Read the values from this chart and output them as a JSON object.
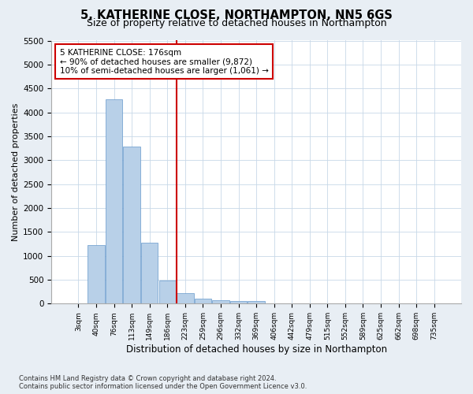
{
  "title": "5, KATHERINE CLOSE, NORTHAMPTON, NN5 6GS",
  "subtitle": "Size of property relative to detached houses in Northampton",
  "xlabel": "Distribution of detached houses by size in Northampton",
  "ylabel": "Number of detached properties",
  "categories": [
    "3sqm",
    "40sqm",
    "76sqm",
    "113sqm",
    "149sqm",
    "186sqm",
    "223sqm",
    "259sqm",
    "296sqm",
    "332sqm",
    "369sqm",
    "406sqm",
    "442sqm",
    "479sqm",
    "515sqm",
    "552sqm",
    "589sqm",
    "625sqm",
    "662sqm",
    "698sqm",
    "735sqm"
  ],
  "values": [
    0,
    1230,
    4280,
    3280,
    1280,
    480,
    215,
    110,
    70,
    55,
    50,
    0,
    0,
    0,
    0,
    0,
    0,
    0,
    0,
    0,
    0
  ],
  "bar_color": "#b8d0e8",
  "bar_edge_color": "#6699cc",
  "vline_index": 5,
  "vline_color": "#cc0000",
  "annotation_text": "5 KATHERINE CLOSE: 176sqm\n← 90% of detached houses are smaller (9,872)\n10% of semi-detached houses are larger (1,061) →",
  "annotation_box_color": "#ffffff",
  "annotation_box_edge": "#cc0000",
  "ylim": [
    0,
    5500
  ],
  "yticks": [
    0,
    500,
    1000,
    1500,
    2000,
    2500,
    3000,
    3500,
    4000,
    4500,
    5000,
    5500
  ],
  "footnote": "Contains HM Land Registry data © Crown copyright and database right 2024.\nContains public sector information licensed under the Open Government Licence v3.0.",
  "background_color": "#e8eef4",
  "plot_bg_color": "#ffffff",
  "title_fontsize": 10.5,
  "subtitle_fontsize": 9,
  "xlabel_fontsize": 8.5,
  "ylabel_fontsize": 8
}
